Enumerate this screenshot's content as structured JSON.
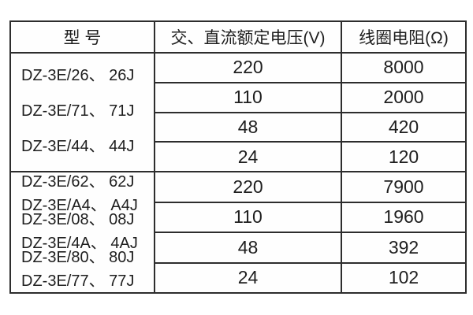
{
  "colors": {
    "background": "#ffffff",
    "cell_background": "#fefefe",
    "border": "#2d2d2d",
    "text": "#1e1e1e"
  },
  "table": {
    "headers": {
      "model": "型 号",
      "voltage": "交、直流额定电压(V)",
      "resistance": "线圈电阻(Ω)"
    },
    "sections": [
      {
        "models": [
          "DZ-3E/26、 26J",
          "DZ-3E/71、 71J",
          "DZ-3E/44、 44J"
        ],
        "rows": [
          {
            "voltage": "220",
            "resistance": "8000"
          },
          {
            "voltage": "110",
            "resistance": "2000"
          },
          {
            "voltage": "48",
            "resistance": "420"
          },
          {
            "voltage": "24",
            "resistance": "120"
          }
        ]
      },
      {
        "models": [
          "DZ-3E/62、 62J",
          "DZ-3E/A4、 A4J",
          "DZ-3E/08、 08J",
          "DZ-3E/4A、 4AJ",
          "DZ-3E/80、 80J",
          "DZ-3E/77、 77J"
        ],
        "rows": [
          {
            "voltage": "220",
            "resistance": "7900"
          },
          {
            "voltage": "110",
            "resistance": "1960"
          },
          {
            "voltage": "48",
            "resistance": "392"
          },
          {
            "voltage": "24",
            "resistance": "102"
          }
        ]
      }
    ]
  }
}
